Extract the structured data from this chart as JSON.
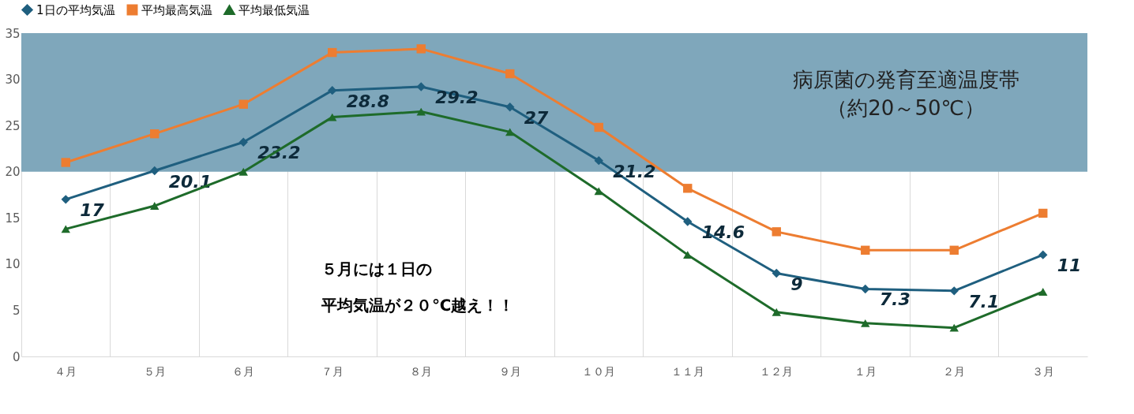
{
  "chart_data": {
    "type": "line",
    "categories": [
      "４月",
      "５月",
      "６月",
      "７月",
      "８月",
      "９月",
      "１０月",
      "１１月",
      "１２月",
      "１月",
      "２月",
      "３月"
    ],
    "series": [
      {
        "name": "1日の平均気温",
        "color": "#1f5f7f",
        "marker": "diamond",
        "values": [
          17,
          20.1,
          23.2,
          28.8,
          29.2,
          27,
          21.2,
          14.6,
          9,
          7.3,
          7.1,
          11
        ],
        "value_labels": [
          "17",
          "20.1",
          "23.2",
          "28.8",
          "29.2",
          "27",
          "21.2",
          "14.6",
          "9",
          "7.3",
          "7.1",
          "11"
        ]
      },
      {
        "name": "平均最高気温",
        "color": "#ed7d31",
        "marker": "square",
        "values": [
          21,
          24.1,
          27.3,
          32.9,
          33.3,
          30.6,
          24.8,
          18.2,
          13.5,
          11.5,
          11.5,
          15.5
        ]
      },
      {
        "name": "平均最低気温",
        "color": "#1e6b2a",
        "marker": "triangle",
        "values": [
          13.8,
          16.3,
          20,
          25.9,
          26.5,
          24.3,
          17.9,
          11,
          4.8,
          3.6,
          3.1,
          7
        ]
      }
    ],
    "ylim": [
      0,
      35
    ],
    "yticks": [
      0,
      5,
      10,
      15,
      20,
      25,
      30,
      35
    ],
    "grid": "x",
    "legend": "top",
    "bands": [
      {
        "axis": "y",
        "from": 20,
        "to": 35,
        "label": "病原菌の発育至適温度帯（約20～50℃）",
        "color": "#7fa7bb"
      }
    ],
    "annotations": [
      "５月には１日の平均気温が２０℃越え！！"
    ]
  }
}
